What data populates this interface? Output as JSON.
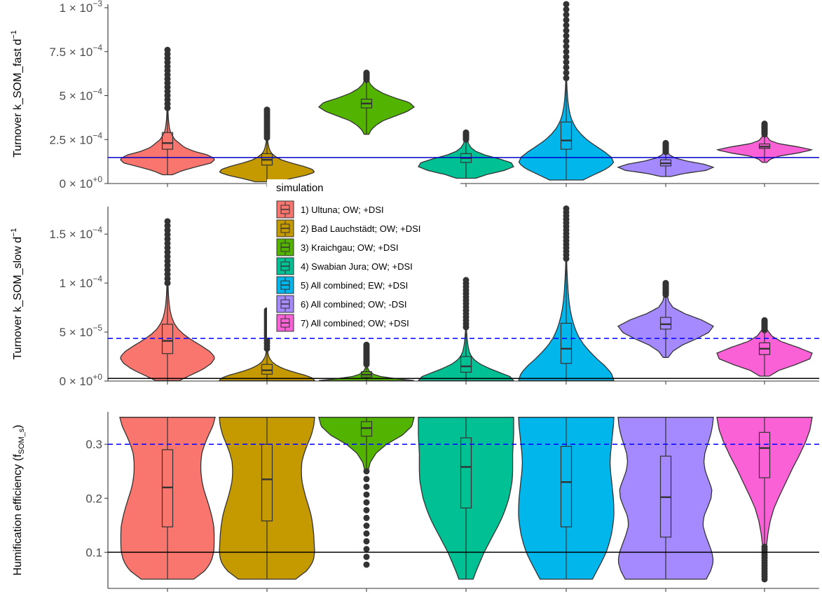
{
  "chart_data": {
    "type": "violin",
    "legend": {
      "title": "simulation",
      "placement": "inside-top-left",
      "entries": [
        {
          "label": "1) Ultuna; OW; +DSI",
          "color": "#F8766D"
        },
        {
          "label": "2) Bad Lauchstädt; OW; +DSI",
          "color": "#C49A00"
        },
        {
          "label": "3) Kraichgau; OW; +DSI",
          "color": "#53B400"
        },
        {
          "label": "4) Swabian Jura; OW; +DSI",
          "color": "#00C094"
        },
        {
          "label": "5) All combined;  EW; +DSI",
          "color": "#00B6EB"
        },
        {
          "label": "6) All combined; OW; -DSI",
          "color": "#A58AFF"
        },
        {
          "label": "7) All combined; OW; +DSI",
          "color": "#FB61D7"
        }
      ]
    },
    "panels": [
      {
        "id": "fast",
        "ylabel_main": "Turnover k_SOM_fast  d",
        "ylabel_sup": "−1",
        "ylim": [
          0,
          0.00102
        ],
        "ticks": [
          {
            "value": 0,
            "mant": "0 × 10",
            "exp": "+0"
          },
          {
            "value": 0.00025,
            "mant": "2.5 × 10",
            "exp": "−4"
          },
          {
            "value": 0.0005,
            "mant": "5 × 10",
            "exp": "−4"
          },
          {
            "value": 0.00075,
            "mant": "7.5 × 10",
            "exp": "−4"
          },
          {
            "value": 0.001,
            "mant": "1 × 10",
            "exp": "−3"
          }
        ],
        "hlines": [
          {
            "value": 0.000148,
            "style": "solid",
            "color": "#0000CC"
          }
        ],
        "violins": [
          {
            "min": 5e-05,
            "q1": 0.000195,
            "median": 0.00023,
            "q3": 0.00029,
            "max": 0.00043,
            "outlier_max": 0.00076,
            "profile": [
              0.1,
              0.3,
              0.6,
              0.92,
              1.0,
              0.85,
              0.55,
              0.35,
              0.25,
              0.15,
              0.1,
              0.06,
              0.04,
              0.03,
              0.02,
              0.015,
              0.012,
              0.01
            ]
          },
          {
            "min": 1e-05,
            "q1": 0.000105,
            "median": 0.000135,
            "q3": 0.00017,
            "max": 0.00026,
            "outlier_max": 0.00042,
            "profile": [
              0.25,
              0.5,
              0.8,
              1.0,
              0.95,
              0.75,
              0.5,
              0.3,
              0.18,
              0.1,
              0.06,
              0.04,
              0.025,
              0.015,
              0.01
            ]
          },
          {
            "min": 0.00028,
            "q1": 0.00043,
            "median": 0.000455,
            "q3": 0.00048,
            "max": 0.00059,
            "outlier_max": 0.00063,
            "profile": [
              0.05,
              0.1,
              0.2,
              0.35,
              0.6,
              0.85,
              1.0,
              0.9,
              0.6,
              0.35,
              0.18,
              0.08,
              0.04
            ]
          },
          {
            "min": 3e-05,
            "q1": 0.00012,
            "median": 0.000145,
            "q3": 0.00017,
            "max": 0.00025,
            "outlier_max": 0.00029,
            "profile": [
              0.2,
              0.45,
              0.8,
              1.0,
              0.95,
              0.7,
              0.4,
              0.2,
              0.1,
              0.05,
              0.03
            ]
          },
          {
            "min": 2e-05,
            "q1": 0.000195,
            "median": 0.000245,
            "q3": 0.00035,
            "max": 0.0006,
            "outlier_max": 0.00102,
            "profile": [
              0.35,
              0.6,
              0.85,
              1.0,
              0.95,
              0.8,
              0.62,
              0.45,
              0.32,
              0.22,
              0.15,
              0.1,
              0.07,
              0.05,
              0.035,
              0.025,
              0.018,
              0.012,
              0.009
            ]
          },
          {
            "min": 4e-05,
            "q1": 0.0001,
            "median": 0.000115,
            "q3": 0.000135,
            "max": 0.00018,
            "outlier_max": 0.00023,
            "profile": [
              0.1,
              0.4,
              0.85,
              1.0,
              0.8,
              0.45,
              0.2,
              0.08,
              0.04
            ]
          },
          {
            "min": 0.00012,
            "q1": 0.0002,
            "median": 0.00021,
            "q3": 0.000225,
            "max": 0.00028,
            "outlier_max": 0.00034,
            "profile": [
              0.05,
              0.12,
              0.3,
              0.7,
              1.0,
              0.7,
              0.3,
              0.12,
              0.06,
              0.03
            ]
          }
        ]
      },
      {
        "id": "slow",
        "ylabel_main": "Turnover k_SOM_slow  d",
        "ylabel_sup": "−1",
        "ylim": [
          0,
          0.000178
        ],
        "ticks": [
          {
            "value": 0,
            "mant": "0 × 10",
            "exp": "+0"
          },
          {
            "value": 5e-05,
            "mant": "5 × 10",
            "exp": "−5"
          },
          {
            "value": 0.0001,
            "mant": "1 × 10",
            "exp": "−4"
          },
          {
            "value": 0.00015,
            "mant": "1.5 × 10",
            "exp": "−4"
          }
        ],
        "hlines": [
          {
            "value": 2.7e-06,
            "style": "solid",
            "color": "#000000"
          },
          {
            "value": 4.35e-05,
            "style": "dashed",
            "color": "#0000FF"
          }
        ],
        "violins": [
          {
            "min": 5e-07,
            "q1": 2.8e-05,
            "median": 4.1e-05,
            "q3": 5.8e-05,
            "max": 0.0001,
            "outlier_max": 0.000163,
            "profile": [
              0.25,
              0.5,
              0.75,
              0.92,
              1.0,
              0.9,
              0.72,
              0.52,
              0.35,
              0.22,
              0.14,
              0.09,
              0.06,
              0.04,
              0.03,
              0.02,
              0.015,
              0.01
            ]
          },
          {
            "min": 5e-07,
            "q1": 7e-06,
            "median": 1.1e-05,
            "q3": 1.7e-05,
            "max": 3.3e-05,
            "outlier_max": 7.2e-05,
            "profile": [
              1.0,
              0.95,
              0.8,
              0.6,
              0.42,
              0.28,
              0.18,
              0.11,
              0.07,
              0.04,
              0.025,
              0.015,
              0.01
            ]
          },
          {
            "min": 5e-07,
            "q1": 4e-06,
            "median": 6.5e-06,
            "q3": 9.5e-06,
            "max": 1.7e-05,
            "outlier_max": 3.7e-05,
            "profile": [
              1.0,
              0.6,
              0.3,
              0.16,
              0.09,
              0.05,
              0.03,
              0.018,
              0.01
            ]
          },
          {
            "min": 5e-07,
            "q1": 9e-06,
            "median": 1.5e-05,
            "q3": 2.5e-05,
            "max": 5.5e-05,
            "outlier_max": 0.000103,
            "profile": [
              1.0,
              0.92,
              0.7,
              0.48,
              0.3,
              0.18,
              0.11,
              0.07,
              0.05,
              0.035,
              0.025,
              0.018,
              0.012,
              0.008
            ]
          },
          {
            "min": 5e-07,
            "q1": 1.8e-05,
            "median": 3.3e-05,
            "q3": 5.9e-05,
            "max": 0.000125,
            "outlier_max": 0.000176,
            "profile": [
              1.0,
              0.95,
              0.82,
              0.65,
              0.5,
              0.37,
              0.27,
              0.2,
              0.15,
              0.11,
              0.08,
              0.06,
              0.045,
              0.035,
              0.025,
              0.018,
              0.012,
              0.008
            ]
          },
          {
            "min": 2.4e-05,
            "q1": 5.3e-05,
            "median": 5.8e-05,
            "q3": 6.5e-05,
            "max": 8.8e-05,
            "outlier_max": 0.0001,
            "profile": [
              0.05,
              0.15,
              0.35,
              0.65,
              0.9,
              1.0,
              0.75,
              0.4,
              0.15,
              0.06,
              0.03
            ]
          },
          {
            "min": 5e-06,
            "q1": 2.7e-05,
            "median": 3.3e-05,
            "q3": 3.9e-05,
            "max": 5.2e-05,
            "outlier_max": 6.2e-05,
            "profile": [
              0.1,
              0.3,
              0.65,
              0.95,
              1.0,
              0.7,
              0.35,
              0.15,
              0.06
            ]
          }
        ]
      },
      {
        "id": "hum",
        "ylabel_main": "Humification efficiency (f",
        "ylabel_sub": "SOM_s",
        "ylabel_end": ")",
        "ylim": [
          0.033,
          0.36
        ],
        "ticks": [
          {
            "value": 0.1,
            "label": "0.1"
          },
          {
            "value": 0.2,
            "label": "0.2"
          },
          {
            "value": 0.3,
            "label": "0.3"
          }
        ],
        "hlines": [
          {
            "value": 0.1,
            "style": "solid",
            "color": "#000000"
          },
          {
            "value": 0.3,
            "style": "dashed",
            "color": "#0000FF"
          }
        ],
        "violins": [
          {
            "min": 0.05,
            "q1": 0.147,
            "median": 0.22,
            "q3": 0.29,
            "max": 0.35,
            "outlier_max": null,
            "profile": [
              0.55,
              0.8,
              0.92,
              0.97,
              0.98,
              0.98,
              0.97,
              0.93,
              0.88,
              0.82,
              0.76,
              0.72,
              0.7,
              0.7,
              0.72,
              0.78,
              0.86,
              0.95,
              1.0
            ]
          },
          {
            "min": 0.05,
            "q1": 0.158,
            "median": 0.235,
            "q3": 0.3,
            "max": 0.35,
            "outlier_max": null,
            "profile": [
              0.6,
              0.85,
              0.97,
              1.0,
              0.99,
              0.98,
              0.96,
              0.93,
              0.88,
              0.82,
              0.77,
              0.73,
              0.72,
              0.73,
              0.78,
              0.85,
              0.93,
              0.98,
              1.0
            ]
          },
          {
            "min": 0.25,
            "q1": 0.315,
            "median": 0.33,
            "q3": 0.342,
            "max": 0.35,
            "outlier_max": null,
            "outlier_min": 0.077,
            "profile": [
              0.03,
              0.08,
              0.2,
              0.42,
              0.75,
              0.95,
              1.0
            ]
          },
          {
            "min": 0.05,
            "q1": 0.182,
            "median": 0.258,
            "q3": 0.312,
            "max": 0.35,
            "outlier_max": null,
            "profile": [
              0.15,
              0.22,
              0.3,
              0.38,
              0.48,
              0.58,
              0.68,
              0.77,
              0.84,
              0.9,
              0.94,
              0.97,
              0.98,
              0.98,
              0.98,
              0.99,
              1.0,
              1.0,
              1.0
            ]
          },
          {
            "min": 0.05,
            "q1": 0.147,
            "median": 0.23,
            "q3": 0.296,
            "max": 0.35,
            "outlier_max": null,
            "profile": [
              0.55,
              0.65,
              0.75,
              0.84,
              0.9,
              0.95,
              0.98,
              1.0,
              1.0,
              0.99,
              0.97,
              0.95,
              0.93,
              0.92,
              0.93,
              0.95,
              0.97,
              0.99,
              1.0
            ]
          },
          {
            "min": 0.05,
            "q1": 0.128,
            "median": 0.202,
            "q3": 0.278,
            "max": 0.35,
            "outlier_max": null,
            "profile": [
              0.85,
              0.95,
              1.0,
              0.97,
              0.9,
              0.83,
              0.78,
              0.8,
              0.88,
              0.95,
              0.97,
              0.9,
              0.83,
              0.8,
              0.82,
              0.88,
              0.94,
              0.98,
              1.0
            ]
          },
          {
            "min": 0.11,
            "q1": 0.238,
            "median": 0.293,
            "q3": 0.322,
            "max": 0.35,
            "outlier_max": null,
            "outlier_min": 0.05,
            "profile": [
              0.04,
              0.07,
              0.12,
              0.2,
              0.32,
              0.45,
              0.58,
              0.72,
              0.85,
              0.95,
              1.0
            ]
          }
        ]
      }
    ]
  }
}
